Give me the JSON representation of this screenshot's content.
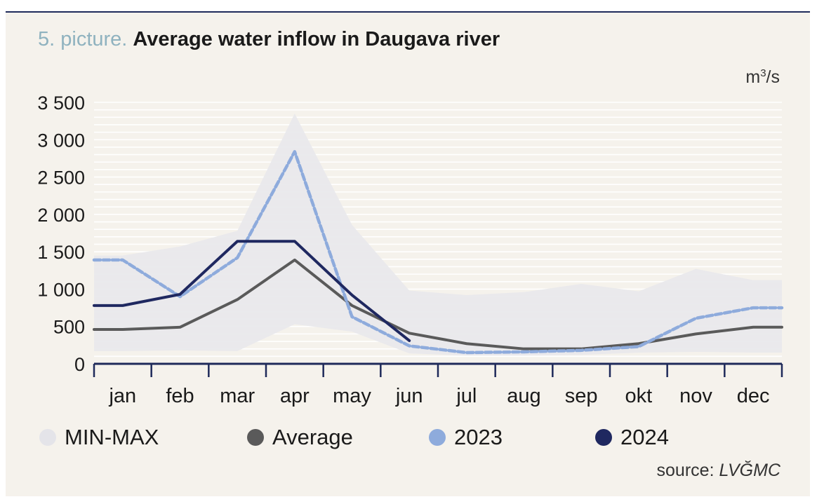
{
  "header": {
    "number": "5. picture.",
    "title": "Average water inflow in Daugava river"
  },
  "footer": {
    "source_prefix": "source: ",
    "source_name": "LVĞMC"
  },
  "colors": {
    "minmax": "#e8e8ec",
    "average": "#5a5a5a",
    "y2023": "#8eabdc",
    "y2024": "#1f2860",
    "grid": "#ffffff",
    "axis": "#1e2a5a"
  },
  "chart_data": {
    "type": "line",
    "unit": "m³/s",
    "categories": [
      "jan",
      "feb",
      "mar",
      "apr",
      "may",
      "jun",
      "jul",
      "aug",
      "sep",
      "okt",
      "nov",
      "dec"
    ],
    "ylim": [
      0,
      3500
    ],
    "yticks": [
      0,
      500,
      1000,
      1500,
      2000,
      2500,
      3000,
      3500
    ],
    "ytick_labels": [
      "0",
      "500",
      "1 000",
      "1 500",
      "2 000",
      "2 500",
      "3 000",
      "3 500"
    ],
    "legend_position": "bottom",
    "series": [
      {
        "name": "MIN-MAX",
        "kind": "band",
        "x": [
          0.5,
          1.5,
          2.5,
          3.5,
          4.5,
          5.5,
          6.5,
          7.5,
          8.5,
          9.5,
          10.5,
          11.5
        ],
        "min": [
          170,
          180,
          170,
          530,
          430,
          140,
          110,
          110,
          120,
          150,
          160,
          150
        ],
        "max": [
          1450,
          1570,
          1780,
          3350,
          1860,
          980,
          920,
          960,
          1070,
          970,
          1270,
          1120
        ]
      },
      {
        "name": "Average",
        "kind": "line",
        "x": [
          0.5,
          1.5,
          2.5,
          3.5,
          4.5,
          5.5,
          6.5,
          7.5,
          8.5,
          9.5,
          10.5,
          11.5
        ],
        "values": [
          460,
          490,
          860,
          1390,
          780,
          410,
          270,
          200,
          200,
          270,
          400,
          490
        ]
      },
      {
        "name": "2023",
        "kind": "line",
        "x": [
          0.5,
          1.5,
          2.5,
          3.5,
          4.5,
          5.5,
          6.5,
          7.5,
          8.5,
          9.5,
          10.5,
          11.5
        ],
        "values": [
          1390,
          900,
          1420,
          2840,
          630,
          240,
          150,
          160,
          180,
          230,
          610,
          750
        ]
      },
      {
        "name": "2024",
        "kind": "line",
        "x": [
          0.5,
          1.5,
          2.5,
          3.5,
          4.5,
          5.5
        ],
        "values": [
          780,
          930,
          1640,
          1640,
          920,
          310
        ]
      }
    ]
  }
}
